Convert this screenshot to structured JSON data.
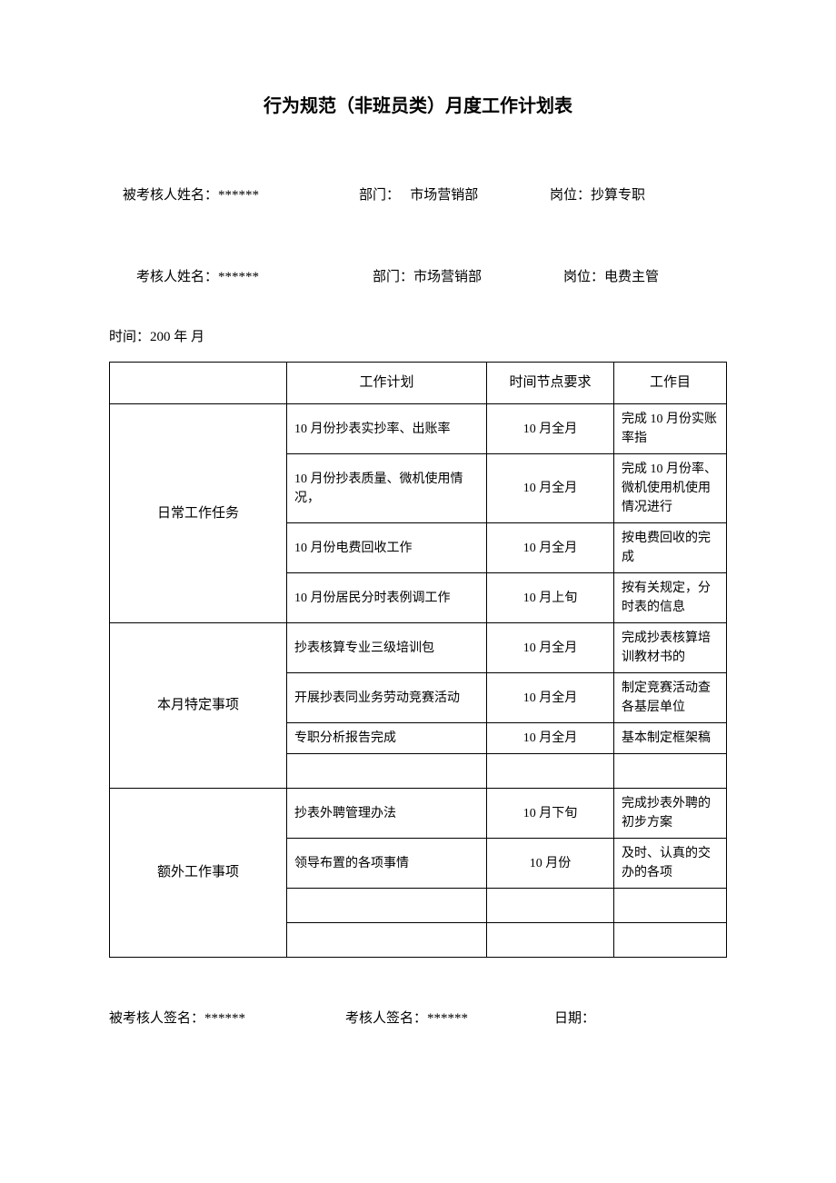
{
  "title": "行为规范（非班员类）月度工作计划表",
  "header": {
    "assessee_label": "被考核人姓名：",
    "assessee_name": "******",
    "assessee_dept_label": "部门：",
    "assessee_dept": "   市场营销部",
    "assessee_pos_label": "岗位：",
    "assessee_pos": "抄算专职",
    "assessor_label": "考核人姓名：",
    "assessor_name": "******",
    "assessor_dept_label": "部门：",
    "assessor_dept": "市场营销部",
    "assessor_pos_label": "岗位：",
    "assessor_pos": "电费主管",
    "date_line": "时间：200     年      月"
  },
  "table": {
    "headers": {
      "blank": "",
      "plan": "工作计划",
      "time": "时间节点要求",
      "goal": "工作目"
    },
    "sections": [
      {
        "name": "日常工作任务",
        "rows": [
          {
            "plan": "10 月份抄表实抄率、出账率",
            "time": "10 月全月",
            "goal": "完成 10 月份实账率指"
          },
          {
            "plan": "10 月份抄表质量、微机使用情况，",
            "time": "10 月全月",
            "goal": "完成 10 月份率、微机使用机使用情况进行"
          },
          {
            "plan": "10 月份电费回收工作",
            "time": "10 月全月",
            "goal": "按电费回收的完成"
          },
          {
            "plan": "10 月份居民分时表例调工作",
            "time": "10 月上旬",
            "goal": "按有关规定，分时表的信息"
          }
        ]
      },
      {
        "name": "本月特定事项",
        "rows": [
          {
            "plan": "抄表核算专业三级培训包",
            "time": "10 月全月",
            "goal": "完成抄表核算培训教材书的"
          },
          {
            "plan": "开展抄表同业务劳动竞赛活动",
            "time": "10 月全月",
            "goal": "制定竞赛活动查各基层单位"
          },
          {
            "plan": "专职分析报告完成",
            "time": "10 月全月",
            "goal": "基本制定框架稿"
          },
          {
            "plan": "",
            "time": "",
            "goal": ""
          }
        ]
      },
      {
        "name": "额外工作事项",
        "rows": [
          {
            "plan": "抄表外聘管理办法",
            "time": "10 月下旬",
            "goal": "完成抄表外聘的初步方案"
          },
          {
            "plan": "领导布置的各项事情",
            "time": "10 月份",
            "goal": "及时、认真的交办的各项"
          },
          {
            "plan": "",
            "time": "",
            "goal": ""
          },
          {
            "plan": "",
            "time": "",
            "goal": ""
          }
        ]
      }
    ]
  },
  "signature": {
    "assessee_sig_label": "被考核人签名：",
    "assessee_sig": "******",
    "assessor_sig_label": "考核人签名：",
    "assessor_sig": "******",
    "date_label": "日期："
  }
}
